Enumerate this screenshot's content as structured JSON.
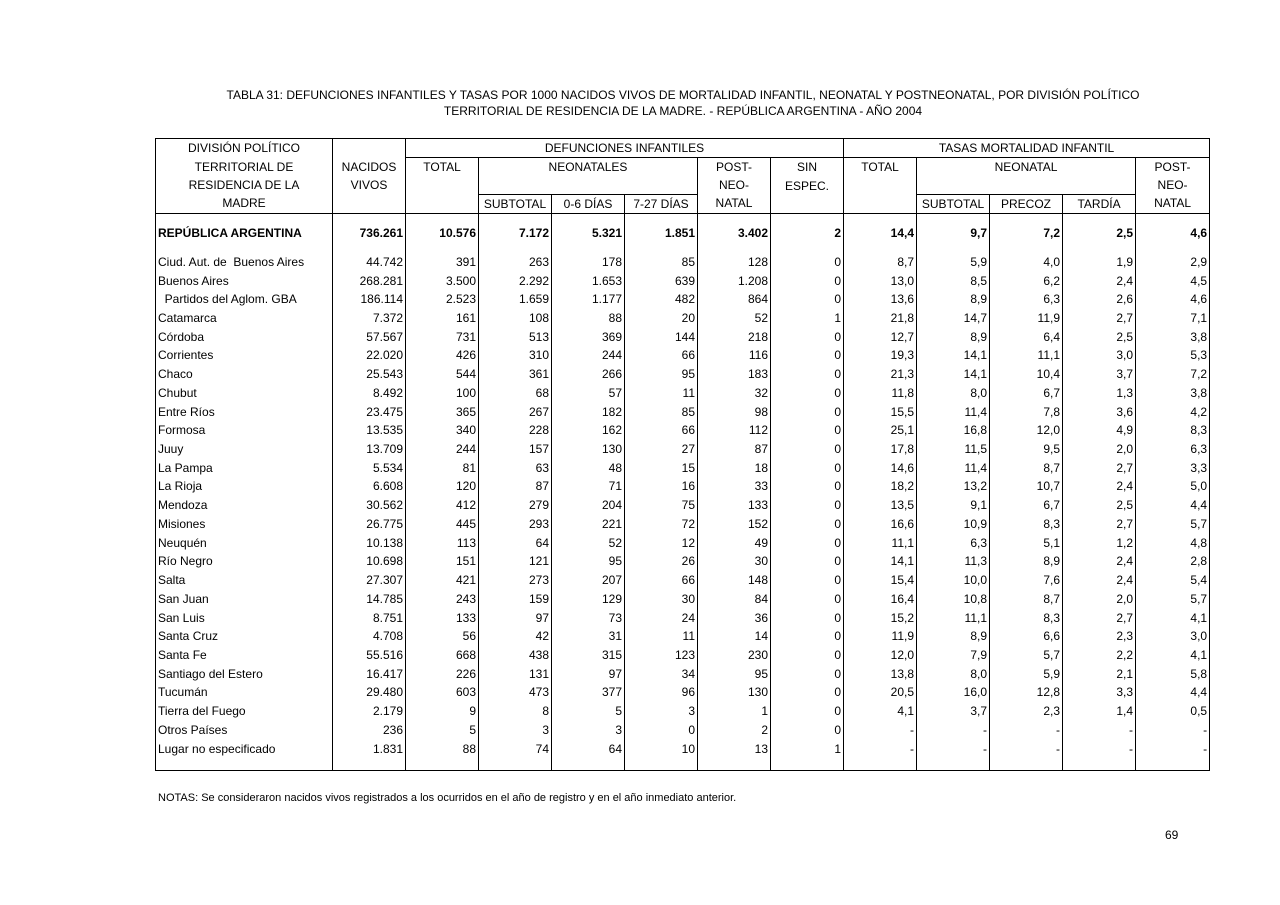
{
  "title": {
    "line1": "TABLA 31: DEFUNCIONES INFANTILES Y TASAS POR 1000 NACIDOS VIVOS DE MORTALIDAD INFANTIL, NEONATAL Y POSTNEONATAL, POR DIVISIÓN POLÍTICO",
    "line2": "TERRITORIAL DE RESIDENCIA DE LA MADRE. - REPÚBLICA ARGENTINA - AÑO 2004"
  },
  "header": {
    "division": [
      "DIVISIÓN POLÍTICO",
      "TERRITORIAL DE",
      "RESIDENCIA DE LA",
      "MADRE"
    ],
    "nacidos": [
      "NACIDOS",
      "VIVOS"
    ],
    "defunciones": "DEFUNCIONES  INFANTILES",
    "def_total": "TOTAL",
    "neonatales": "NEONATALES",
    "def_subtotal": "SUBTOTAL",
    "def_0_6": "0-6 DÍAS",
    "def_7_27": "7-27 DÍAS",
    "def_post": [
      "POST-",
      "NEO-",
      "NATAL"
    ],
    "sin_espec": [
      "SIN",
      "ESPEC."
    ],
    "tasas": "TASAS MORTALIDAD INFANTIL",
    "tasa_total": "TOTAL",
    "neonatal": "NEONATAL",
    "tasa_subtotal": "SUBTOTAL",
    "precoz": "PRECOZ",
    "tardia": "TARDÍA",
    "tasa_post": [
      "POST-",
      "NEO-",
      "NATAL"
    ]
  },
  "total_row": [
    "REPÚBLICA ARGENTINA",
    "736.261",
    "10.576",
    "7.172",
    "5.321",
    "1.851",
    "3.402",
    "2",
    "14,4",
    "9,7",
    "7,2",
    "2,5",
    "4,6"
  ],
  "rows": [
    [
      "Ciud. Aut. de  Buenos Aires",
      "44.742",
      "391",
      "263",
      "178",
      "85",
      "128",
      "0",
      "8,7",
      "5,9",
      "4,0",
      "1,9",
      "2,9"
    ],
    [
      "Buenos Aires",
      "268.281",
      "3.500",
      "2.292",
      "1.653",
      "639",
      "1.208",
      "0",
      "13,0",
      "8,5",
      "6,2",
      "2,4",
      "4,5"
    ],
    [
      "  Partidos del Aglom. GBA",
      "186.114",
      "2.523",
      "1.659",
      "1.177",
      "482",
      "864",
      "0",
      "13,6",
      "8,9",
      "6,3",
      "2,6",
      "4,6"
    ],
    [
      "Catamarca",
      "7.372",
      "161",
      "108",
      "88",
      "20",
      "52",
      "1",
      "21,8",
      "14,7",
      "11,9",
      "2,7",
      "7,1"
    ],
    [
      "Córdoba",
      "57.567",
      "731",
      "513",
      "369",
      "144",
      "218",
      "0",
      "12,7",
      "8,9",
      "6,4",
      "2,5",
      "3,8"
    ],
    [
      "Corrientes",
      "22.020",
      "426",
      "310",
      "244",
      "66",
      "116",
      "0",
      "19,3",
      "14,1",
      "11,1",
      "3,0",
      "5,3"
    ],
    [
      "Chaco",
      "25.543",
      "544",
      "361",
      "266",
      "95",
      "183",
      "0",
      "21,3",
      "14,1",
      "10,4",
      "3,7",
      "7,2"
    ],
    [
      "Chubut",
      "8.492",
      "100",
      "68",
      "57",
      "11",
      "32",
      "0",
      "11,8",
      "8,0",
      "6,7",
      "1,3",
      "3,8"
    ],
    [
      "Entre Ríos",
      "23.475",
      "365",
      "267",
      "182",
      "85",
      "98",
      "0",
      "15,5",
      "11,4",
      "7,8",
      "3,6",
      "4,2"
    ],
    [
      "Formosa",
      "13.535",
      "340",
      "228",
      "162",
      "66",
      "112",
      "0",
      "25,1",
      "16,8",
      "12,0",
      "4,9",
      "8,3"
    ],
    [
      "Juuy",
      "13.709",
      "244",
      "157",
      "130",
      "27",
      "87",
      "0",
      "17,8",
      "11,5",
      "9,5",
      "2,0",
      "6,3"
    ],
    [
      "La Pampa",
      "5.534",
      "81",
      "63",
      "48",
      "15",
      "18",
      "0",
      "14,6",
      "11,4",
      "8,7",
      "2,7",
      "3,3"
    ],
    [
      "La Rioja",
      "6.608",
      "120",
      "87",
      "71",
      "16",
      "33",
      "0",
      "18,2",
      "13,2",
      "10,7",
      "2,4",
      "5,0"
    ],
    [
      "Mendoza",
      "30.562",
      "412",
      "279",
      "204",
      "75",
      "133",
      "0",
      "13,5",
      "9,1",
      "6,7",
      "2,5",
      "4,4"
    ],
    [
      "Misiones",
      "26.775",
      "445",
      "293",
      "221",
      "72",
      "152",
      "0",
      "16,6",
      "10,9",
      "8,3",
      "2,7",
      "5,7"
    ],
    [
      "Neuquén",
      "10.138",
      "113",
      "64",
      "52",
      "12",
      "49",
      "0",
      "11,1",
      "6,3",
      "5,1",
      "1,2",
      "4,8"
    ],
    [
      "Río Negro",
      "10.698",
      "151",
      "121",
      "95",
      "26",
      "30",
      "0",
      "14,1",
      "11,3",
      "8,9",
      "2,4",
      "2,8"
    ],
    [
      "Salta",
      "27.307",
      "421",
      "273",
      "207",
      "66",
      "148",
      "0",
      "15,4",
      "10,0",
      "7,6",
      "2,4",
      "5,4"
    ],
    [
      "San Juan",
      "14.785",
      "243",
      "159",
      "129",
      "30",
      "84",
      "0",
      "16,4",
      "10,8",
      "8,7",
      "2,0",
      "5,7"
    ],
    [
      "San Luis",
      "8.751",
      "133",
      "97",
      "73",
      "24",
      "36",
      "0",
      "15,2",
      "11,1",
      "8,3",
      "2,7",
      "4,1"
    ],
    [
      "Santa Cruz",
      "4.708",
      "56",
      "42",
      "31",
      "11",
      "14",
      "0",
      "11,9",
      "8,9",
      "6,6",
      "2,3",
      "3,0"
    ],
    [
      "Santa Fe",
      "55.516",
      "668",
      "438",
      "315",
      "123",
      "230",
      "0",
      "12,0",
      "7,9",
      "5,7",
      "2,2",
      "4,1"
    ],
    [
      "Santiago del Estero",
      "16.417",
      "226",
      "131",
      "97",
      "34",
      "95",
      "0",
      "13,8",
      "8,0",
      "5,9",
      "2,1",
      "5,8"
    ],
    [
      "Tucumán",
      "29.480",
      "603",
      "473",
      "377",
      "96",
      "130",
      "0",
      "20,5",
      "16,0",
      "12,8",
      "3,3",
      "4,4"
    ],
    [
      "Tierra del Fuego",
      "2.179",
      "9",
      "8",
      "5",
      "3",
      "1",
      "0",
      "4,1",
      "3,7",
      "2,3",
      "1,4",
      "0,5"
    ],
    [
      "Otros Países",
      "236",
      "5",
      "3",
      "3",
      "0",
      "2",
      "0",
      "-",
      "-",
      "-",
      "-",
      "-"
    ],
    [
      "Lugar no especificado",
      "1.831",
      "88",
      "74",
      "64",
      "10",
      "13",
      "1",
      "-",
      "-",
      "-",
      "-",
      "-"
    ]
  ],
  "notes": "NOTAS: Se consideraron nacidos vivos registrados a los ocurridos en el año de registro y en el año inmediato anterior.",
  "page_number": "69"
}
